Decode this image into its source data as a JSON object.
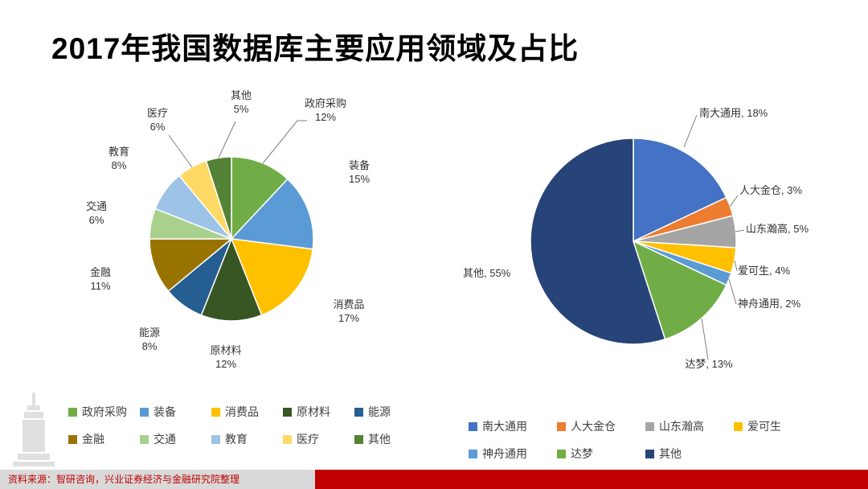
{
  "header": {
    "title": "2017年我国数据库主要应用领域及占比"
  },
  "chart_data": [
    {
      "type": "pie",
      "position": "left",
      "labels": [
        "政府采购",
        "装备",
        "消费品",
        "原材料",
        "能源",
        "金融",
        "交通",
        "教育",
        "医疗",
        "其他"
      ],
      "values": [
        12,
        15,
        17,
        12,
        8,
        11,
        6,
        8,
        6,
        5
      ],
      "colors": [
        "#70AD47",
        "#5B9BD5",
        "#FFC000",
        "#375623",
        "#255E91",
        "#997300",
        "#A9D18E",
        "#9DC3E6",
        "#FFD966",
        "#548235"
      ],
      "label_format": "name-newline-percent",
      "legend_position": "bottom"
    },
    {
      "type": "pie",
      "position": "right",
      "labels": [
        "南大通用",
        "人大金仓",
        "山东瀚高",
        "爱可生",
        "神舟通用",
        "达梦",
        "其他"
      ],
      "values": [
        18,
        3,
        5,
        4,
        2,
        13,
        55
      ],
      "colors": [
        "#4472C4",
        "#ED7D31",
        "#A5A5A5",
        "#FFC000",
        "#5B9BD5",
        "#70AD47",
        "#264478"
      ],
      "label_format": "name-comma-percent",
      "legend_position": "bottom"
    }
  ],
  "footer": {
    "source_text": "资料来源：智研咨询，兴业证券经济与金融研究院整理",
    "text_color": "#C00000",
    "bar_color": "#C00000",
    "strip_color": "#D9D9D9"
  }
}
